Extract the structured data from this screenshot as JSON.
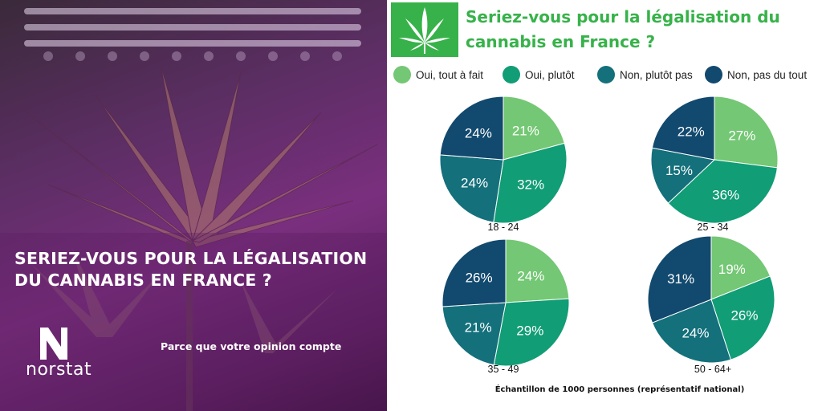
{
  "left_panel": {
    "title_line1": "SERIEZ-VOUS POUR LA LÉGALISATION",
    "title_line2": "DU CANNABIS EN FRANCE ?",
    "tagline": "Parce que votre opinion compte",
    "logo_text": "norstat",
    "logo_icon": "norstat-n-icon"
  },
  "header": {
    "title_line1": "Seriez-vous pour la légalisation du",
    "title_line2": "cannabis en France ?",
    "icon": "cannabis-leaf-icon"
  },
  "colors": {
    "accent": "#37b24a",
    "series": [
      "#74c774",
      "#119d76",
      "#14707b",
      "#12496e"
    ]
  },
  "chart_data": {
    "type": "pie",
    "title": "Seriez-vous pour la légalisation du cannabis en France ?",
    "legend": [
      "Oui, tout à fait",
      "Oui, plutôt",
      "Non, plutôt pas",
      "Non, pas du tout"
    ],
    "legend_position": "top",
    "groups": [
      {
        "label": "18 - 24",
        "values": [
          21,
          32,
          24,
          24
        ]
      },
      {
        "label": "25 - 34",
        "values": [
          27,
          36,
          15,
          22
        ]
      },
      {
        "label": "35 - 49",
        "values": [
          24,
          29,
          21,
          26
        ]
      },
      {
        "label": "50 - 64+",
        "values": [
          19,
          26,
          24,
          31
        ]
      }
    ]
  },
  "footnote": "Échantillon de 1000 personnes (représentatif national)"
}
